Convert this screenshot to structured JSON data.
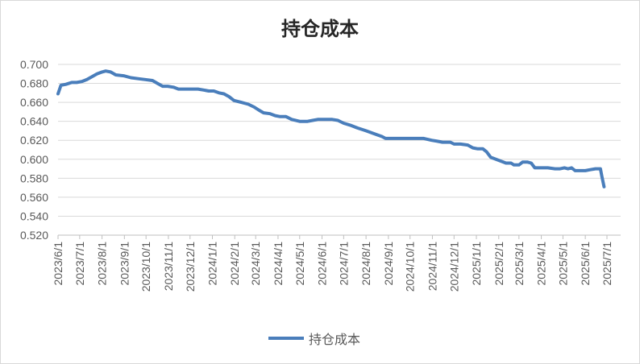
{
  "chart_data": {
    "type": "line",
    "title": "持仓成本",
    "xlabel": "",
    "ylabel": "",
    "ylim": [
      0.52,
      0.7
    ],
    "y_ticks": [
      "0.520",
      "0.540",
      "0.560",
      "0.580",
      "0.600",
      "0.620",
      "0.640",
      "0.660",
      "0.680",
      "0.700"
    ],
    "x_ticks": [
      "2023/6/1",
      "2023/7/1",
      "2023/8/1",
      "2023/9/1",
      "2023/10/1",
      "2023/11/1",
      "2023/12/1",
      "2024/1/1",
      "2024/2/1",
      "2024/3/1",
      "2024/4/1",
      "2024/5/1",
      "2024/6/1",
      "2024/7/1",
      "2024/8/1",
      "2024/9/1",
      "2024/10/1",
      "2024/11/1",
      "2024/12/1",
      "2025/1/1",
      "2025/2/1",
      "2025/3/1",
      "2025/4/1",
      "2025/5/1",
      "2025/6/1",
      "2025/7/1"
    ],
    "grid": true,
    "legend_position": "bottom",
    "color": "#4a7ebb",
    "series": [
      {
        "name": "持仓成本",
        "points": [
          [
            "2023-06-01",
            0.669
          ],
          [
            "2023-06-05",
            0.678
          ],
          [
            "2023-06-12",
            0.679
          ],
          [
            "2023-06-20",
            0.681
          ],
          [
            "2023-06-27",
            0.681
          ],
          [
            "2023-07-04",
            0.682
          ],
          [
            "2023-07-11",
            0.684
          ],
          [
            "2023-07-18",
            0.687
          ],
          [
            "2023-07-25",
            0.69
          ],
          [
            "2023-08-01",
            0.692
          ],
          [
            "2023-08-06",
            0.693
          ],
          [
            "2023-08-13",
            0.692
          ],
          [
            "2023-08-20",
            0.689
          ],
          [
            "2023-08-31",
            0.688
          ],
          [
            "2023-09-10",
            0.686
          ],
          [
            "2023-09-20",
            0.685
          ],
          [
            "2023-09-30",
            0.684
          ],
          [
            "2023-10-10",
            0.683
          ],
          [
            "2023-10-17",
            0.68
          ],
          [
            "2023-10-24",
            0.677
          ],
          [
            "2023-10-31",
            0.677
          ],
          [
            "2023-11-08",
            0.676
          ],
          [
            "2023-11-15",
            0.674
          ],
          [
            "2023-11-25",
            0.674
          ],
          [
            "2023-12-01",
            0.674
          ],
          [
            "2023-12-12",
            0.674
          ],
          [
            "2023-12-20",
            0.673
          ],
          [
            "2023-12-27",
            0.672
          ],
          [
            "2024-01-03",
            0.672
          ],
          [
            "2024-01-10",
            0.67
          ],
          [
            "2024-01-17",
            0.669
          ],
          [
            "2024-01-24",
            0.666
          ],
          [
            "2024-01-31",
            0.662
          ],
          [
            "2024-02-10",
            0.66
          ],
          [
            "2024-02-20",
            0.658
          ],
          [
            "2024-02-28",
            0.655
          ],
          [
            "2024-03-05",
            0.652
          ],
          [
            "2024-03-12",
            0.649
          ],
          [
            "2024-03-21",
            0.648
          ],
          [
            "2024-03-28",
            0.646
          ],
          [
            "2024-04-04",
            0.645
          ],
          [
            "2024-04-12",
            0.645
          ],
          [
            "2024-04-20",
            0.642
          ],
          [
            "2024-05-01",
            0.64
          ],
          [
            "2024-05-12",
            0.64
          ],
          [
            "2024-05-19",
            0.641
          ],
          [
            "2024-05-26",
            0.642
          ],
          [
            "2024-06-05",
            0.642
          ],
          [
            "2024-06-15",
            0.642
          ],
          [
            "2024-06-23",
            0.641
          ],
          [
            "2024-07-01",
            0.638
          ],
          [
            "2024-07-10",
            0.636
          ],
          [
            "2024-07-20",
            0.633
          ],
          [
            "2024-08-01",
            0.63
          ],
          [
            "2024-08-12",
            0.627
          ],
          [
            "2024-08-23",
            0.624
          ],
          [
            "2024-08-28",
            0.622
          ],
          [
            "2024-09-10",
            0.622
          ],
          [
            "2024-09-25",
            0.622
          ],
          [
            "2024-10-10",
            0.622
          ],
          [
            "2024-10-20",
            0.622
          ],
          [
            "2024-10-31",
            0.62
          ],
          [
            "2024-11-08",
            0.619
          ],
          [
            "2024-11-15",
            0.618
          ],
          [
            "2024-11-26",
            0.618
          ],
          [
            "2024-12-01",
            0.616
          ],
          [
            "2024-12-10",
            0.616
          ],
          [
            "2024-12-20",
            0.615
          ],
          [
            "2024-12-27",
            0.612
          ],
          [
            "2025-01-03",
            0.611
          ],
          [
            "2025-01-10",
            0.611
          ],
          [
            "2025-01-15",
            0.608
          ],
          [
            "2025-01-21",
            0.602
          ],
          [
            "2025-01-28",
            0.6
          ],
          [
            "2025-02-04",
            0.598
          ],
          [
            "2025-02-11",
            0.596
          ],
          [
            "2025-02-18",
            0.596
          ],
          [
            "2025-02-22",
            0.594
          ],
          [
            "2025-03-01",
            0.594
          ],
          [
            "2025-03-06",
            0.597
          ],
          [
            "2025-03-13",
            0.597
          ],
          [
            "2025-03-18",
            0.596
          ],
          [
            "2025-03-23",
            0.591
          ],
          [
            "2025-04-01",
            0.591
          ],
          [
            "2025-04-10",
            0.591
          ],
          [
            "2025-04-20",
            0.59
          ],
          [
            "2025-04-27",
            0.59
          ],
          [
            "2025-05-03",
            0.591
          ],
          [
            "2025-05-08",
            0.59
          ],
          [
            "2025-05-13",
            0.591
          ],
          [
            "2025-05-18",
            0.588
          ],
          [
            "2025-05-25",
            0.588
          ],
          [
            "2025-06-01",
            0.588
          ],
          [
            "2025-06-08",
            0.589
          ],
          [
            "2025-06-15",
            0.59
          ],
          [
            "2025-06-22",
            0.59
          ],
          [
            "2025-06-24",
            0.582
          ],
          [
            "2025-06-27",
            0.571
          ]
        ]
      }
    ]
  }
}
